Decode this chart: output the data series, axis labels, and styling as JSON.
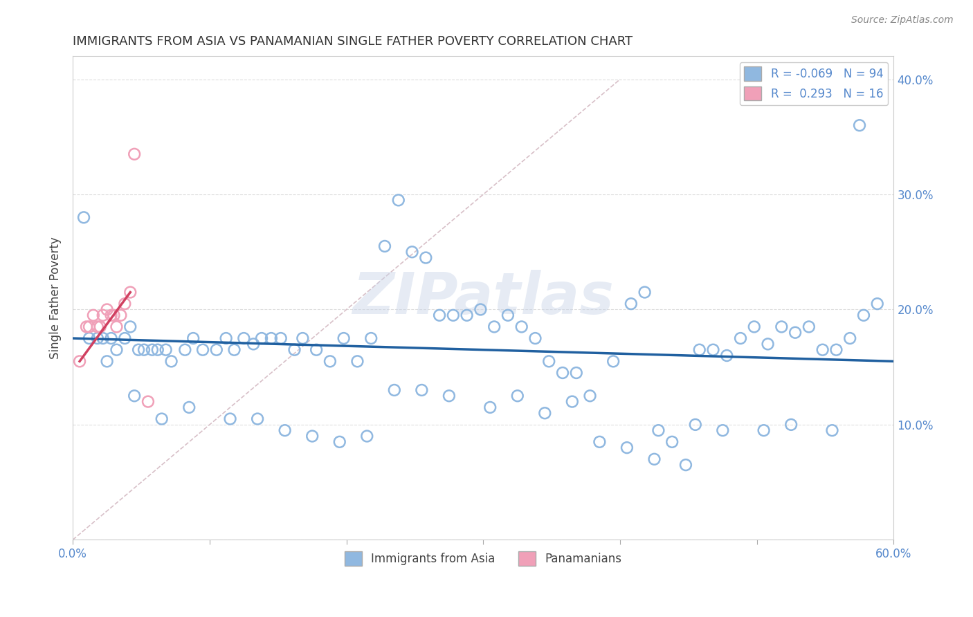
{
  "title": "IMMIGRANTS FROM ASIA VS PANAMANIAN SINGLE FATHER POVERTY CORRELATION CHART",
  "source_text": "Source: ZipAtlas.com",
  "ylabel": "Single Father Poverty",
  "xlim": [
    0,
    0.6
  ],
  "ylim": [
    0,
    0.42
  ],
  "xticks": [
    0.0,
    0.1,
    0.2,
    0.3,
    0.4,
    0.5,
    0.6
  ],
  "yticks": [
    0.0,
    0.1,
    0.2,
    0.3,
    0.4
  ],
  "R_asia": -0.069,
  "N_asia": 94,
  "R_panama": 0.293,
  "N_panama": 16,
  "blue_color": "#90b8e0",
  "pink_color": "#f0a0b8",
  "blue_line_color": "#2060a0",
  "pink_line_color": "#d04060",
  "ref_line_color": "#d8c0c8",
  "watermark": "ZIPatlas",
  "blue_scatter_x": [
    0.008,
    0.012,
    0.018,
    0.022,
    0.028,
    0.032,
    0.038,
    0.042,
    0.048,
    0.052,
    0.058,
    0.062,
    0.068,
    0.072,
    0.082,
    0.088,
    0.095,
    0.105,
    0.112,
    0.118,
    0.125,
    0.132,
    0.138,
    0.145,
    0.152,
    0.162,
    0.168,
    0.178,
    0.188,
    0.198,
    0.208,
    0.218,
    0.228,
    0.238,
    0.248,
    0.258,
    0.268,
    0.278,
    0.288,
    0.298,
    0.308,
    0.318,
    0.328,
    0.338,
    0.348,
    0.358,
    0.368,
    0.378,
    0.395,
    0.408,
    0.418,
    0.428,
    0.438,
    0.448,
    0.458,
    0.468,
    0.478,
    0.488,
    0.498,
    0.508,
    0.518,
    0.528,
    0.538,
    0.548,
    0.558,
    0.568,
    0.578,
    0.588,
    0.025,
    0.045,
    0.065,
    0.085,
    0.115,
    0.135,
    0.155,
    0.175,
    0.195,
    0.215,
    0.235,
    0.255,
    0.275,
    0.305,
    0.325,
    0.345,
    0.365,
    0.385,
    0.405,
    0.425,
    0.455,
    0.475,
    0.505,
    0.525,
    0.555,
    0.575
  ],
  "blue_scatter_y": [
    0.28,
    0.175,
    0.175,
    0.175,
    0.175,
    0.165,
    0.175,
    0.185,
    0.165,
    0.165,
    0.165,
    0.165,
    0.165,
    0.155,
    0.165,
    0.175,
    0.165,
    0.165,
    0.175,
    0.165,
    0.175,
    0.17,
    0.175,
    0.175,
    0.175,
    0.165,
    0.175,
    0.165,
    0.155,
    0.175,
    0.155,
    0.175,
    0.255,
    0.295,
    0.25,
    0.245,
    0.195,
    0.195,
    0.195,
    0.2,
    0.185,
    0.195,
    0.185,
    0.175,
    0.155,
    0.145,
    0.145,
    0.125,
    0.155,
    0.205,
    0.215,
    0.095,
    0.085,
    0.065,
    0.165,
    0.165,
    0.16,
    0.175,
    0.185,
    0.17,
    0.185,
    0.18,
    0.185,
    0.165,
    0.165,
    0.175,
    0.195,
    0.205,
    0.155,
    0.125,
    0.105,
    0.115,
    0.105,
    0.105,
    0.095,
    0.09,
    0.085,
    0.09,
    0.13,
    0.13,
    0.125,
    0.115,
    0.125,
    0.11,
    0.12,
    0.085,
    0.08,
    0.07,
    0.1,
    0.095,
    0.095,
    0.1,
    0.095,
    0.36
  ],
  "pink_scatter_x": [
    0.005,
    0.01,
    0.012,
    0.015,
    0.018,
    0.02,
    0.022,
    0.025,
    0.028,
    0.03,
    0.032,
    0.035,
    0.038,
    0.042,
    0.045,
    0.055
  ],
  "pink_scatter_y": [
    0.155,
    0.185,
    0.185,
    0.195,
    0.185,
    0.185,
    0.195,
    0.2,
    0.195,
    0.195,
    0.185,
    0.195,
    0.205,
    0.215,
    0.335,
    0.12
  ]
}
